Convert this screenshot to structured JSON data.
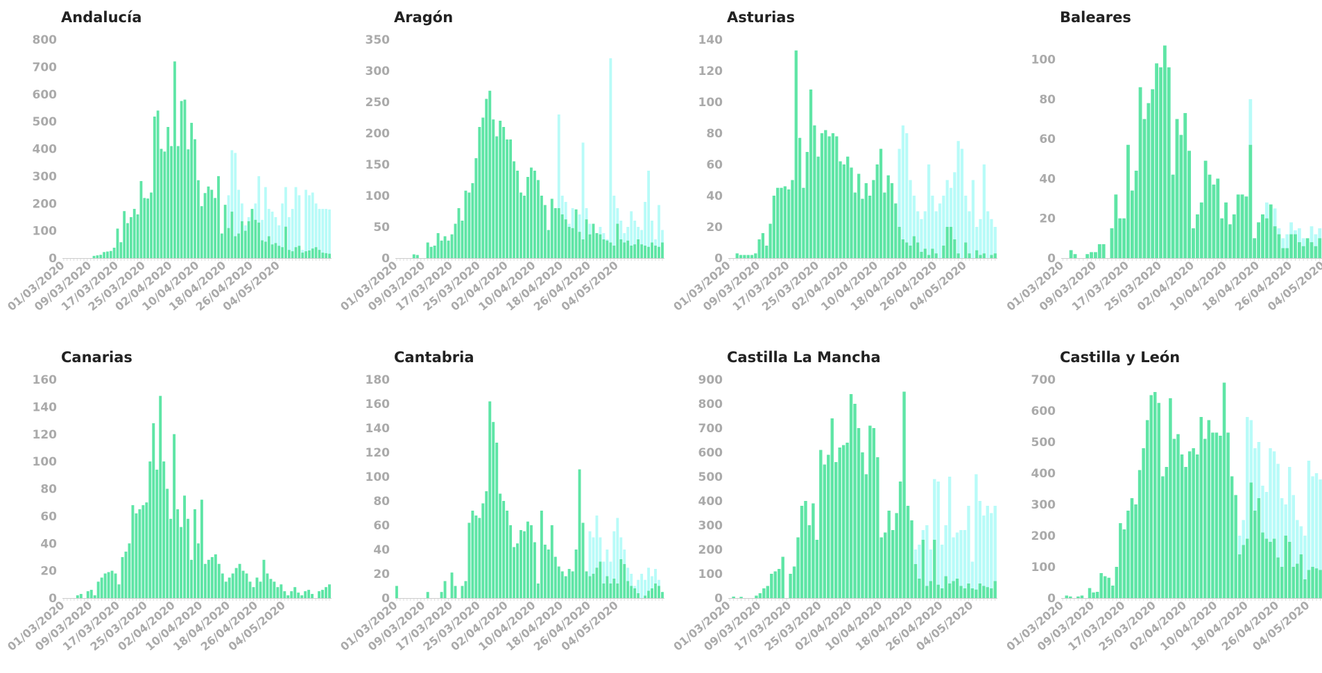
{
  "colors": {
    "primary": "#5fe5a5",
    "secondary": "#b8fbf8",
    "tick_text": "#aaaaaa",
    "title": "#222222",
    "axis": "#cccccc"
  },
  "x_tick_labels": [
    "01/03/2020",
    "09/03/2020",
    "17/03/2020",
    "25/03/2020",
    "02/04/2020",
    "10/04/2020",
    "18/04/2020",
    "26/04/2020",
    "04/05/2020"
  ],
  "chart_data": [
    {
      "type": "bar",
      "title": "Andalucía",
      "ylim": [
        0,
        800
      ],
      "yticks": [
        0,
        100,
        200,
        300,
        400,
        500,
        600,
        700,
        800
      ],
      "start_date": "01/03/2020",
      "values": [
        0,
        0,
        0,
        0,
        0,
        0,
        0,
        0,
        0,
        8,
        10,
        12,
        22,
        24,
        26,
        38,
        108,
        58,
        172,
        128,
        150,
        180,
        160,
        282,
        220,
        218,
        240,
        518,
        540,
        400,
        390,
        480,
        410,
        720,
        410,
        575,
        580,
        398,
        495,
        435,
        285,
        190,
        238,
        262,
        250,
        220,
        300,
        90,
        195,
        110,
        170,
        80,
        90,
        135,
        100,
        135,
        180,
        140,
        130,
        65,
        60,
        80,
        50,
        55,
        45,
        40,
        115,
        30,
        25,
        40,
        45,
        20,
        25,
        28,
        35,
        40,
        30,
        20,
        18,
        16
      ],
      "overlay": [
        0,
        0,
        0,
        0,
        0,
        0,
        0,
        0,
        0,
        8,
        10,
        12,
        22,
        24,
        26,
        38,
        108,
        58,
        172,
        128,
        150,
        180,
        160,
        282,
        220,
        218,
        240,
        518,
        540,
        400,
        390,
        480,
        410,
        720,
        410,
        575,
        580,
        398,
        495,
        435,
        285,
        190,
        238,
        262,
        250,
        220,
        300,
        90,
        195,
        230,
        395,
        385,
        250,
        200,
        120,
        150,
        180,
        200,
        300,
        140,
        260,
        180,
        170,
        150,
        120,
        200,
        260,
        150,
        180,
        260,
        230,
        30,
        250,
        230,
        240,
        200,
        180,
        180,
        180,
        178
      ]
    },
    {
      "type": "bar",
      "title": "Aragón",
      "ylim": [
        0,
        350
      ],
      "yticks": [
        0,
        50,
        100,
        150,
        200,
        250,
        300,
        350
      ],
      "start_date": "01/03/2020",
      "values": [
        0,
        0,
        0,
        0,
        0,
        6,
        5,
        0,
        0,
        25,
        18,
        20,
        40,
        28,
        35,
        28,
        38,
        55,
        80,
        60,
        108,
        105,
        120,
        160,
        210,
        225,
        255,
        268,
        222,
        195,
        220,
        210,
        190,
        190,
        155,
        140,
        105,
        100,
        130,
        145,
        140,
        125,
        100,
        85,
        45,
        95,
        80,
        80,
        70,
        62,
        50,
        48,
        78,
        42,
        30,
        62,
        38,
        55,
        40,
        38,
        30,
        28,
        25,
        20,
        55,
        30,
        25,
        28,
        20,
        22,
        30,
        22,
        20,
        18,
        25,
        20,
        18,
        25
      ],
      "overlay": [
        0,
        0,
        0,
        0,
        0,
        6,
        5,
        0,
        0,
        25,
        18,
        20,
        40,
        28,
        35,
        28,
        38,
        55,
        80,
        60,
        108,
        105,
        120,
        160,
        210,
        225,
        255,
        268,
        222,
        195,
        220,
        210,
        190,
        190,
        155,
        140,
        105,
        100,
        130,
        145,
        140,
        125,
        100,
        85,
        45,
        95,
        80,
        230,
        100,
        90,
        55,
        80,
        60,
        70,
        185,
        80,
        55,
        40,
        30,
        50,
        40,
        30,
        320,
        100,
        80,
        60,
        40,
        50,
        75,
        60,
        50,
        45,
        90,
        140,
        60,
        30,
        85,
        45
      ]
    },
    {
      "type": "bar",
      "title": "Asturias",
      "ylim": [
        0,
        140
      ],
      "yticks": [
        0,
        20,
        40,
        60,
        80,
        100,
        120,
        140
      ],
      "start_date": "01/03/2020",
      "values": [
        0,
        0,
        3,
        2,
        2,
        2,
        2,
        3,
        12,
        16,
        8,
        22,
        40,
        45,
        45,
        46,
        44,
        50,
        133,
        77,
        45,
        68,
        108,
        85,
        65,
        80,
        82,
        78,
        80,
        78,
        62,
        60,
        65,
        58,
        42,
        54,
        38,
        48,
        40,
        50,
        60,
        70,
        42,
        53,
        48,
        35,
        20,
        12,
        10,
        8,
        14,
        10,
        4,
        6,
        2,
        6,
        3,
        0,
        8,
        20,
        20,
        12,
        3,
        0,
        10,
        3,
        0,
        5,
        2,
        3,
        0,
        2,
        3
      ],
      "overlay": [
        0,
        0,
        3,
        2,
        2,
        2,
        2,
        3,
        12,
        16,
        8,
        22,
        40,
        45,
        45,
        46,
        44,
        50,
        133,
        77,
        45,
        68,
        108,
        85,
        65,
        80,
        82,
        78,
        80,
        78,
        62,
        60,
        65,
        58,
        42,
        54,
        38,
        48,
        40,
        50,
        60,
        70,
        42,
        53,
        48,
        35,
        70,
        85,
        80,
        50,
        40,
        30,
        25,
        30,
        60,
        40,
        30,
        35,
        40,
        50,
        45,
        55,
        75,
        70,
        40,
        30,
        50,
        20,
        25,
        60,
        30,
        25,
        20
      ]
    },
    {
      "type": "bar",
      "title": "Baleares",
      "ylim": [
        0,
        110
      ],
      "yticks": [
        0,
        20,
        40,
        60,
        80,
        100
      ],
      "start_date": "01/03/2020",
      "values": [
        0,
        0,
        4,
        2,
        0,
        0,
        2,
        3,
        3,
        7,
        7,
        0,
        15,
        32,
        20,
        20,
        57,
        34,
        44,
        86,
        70,
        78,
        85,
        98,
        96,
        107,
        96,
        42,
        70,
        62,
        73,
        54,
        15,
        22,
        28,
        49,
        42,
        37,
        40,
        20,
        28,
        17,
        22,
        32,
        32,
        31,
        57,
        10,
        18,
        22,
        20,
        27,
        16,
        12,
        5,
        5,
        12,
        12,
        8,
        6,
        10,
        8,
        6,
        10,
        8,
        6
      ],
      "overlay": [
        0,
        0,
        4,
        2,
        0,
        0,
        2,
        3,
        3,
        7,
        7,
        0,
        15,
        32,
        20,
        20,
        57,
        34,
        44,
        86,
        70,
        78,
        85,
        98,
        96,
        107,
        96,
        42,
        70,
        62,
        73,
        54,
        15,
        22,
        28,
        49,
        42,
        37,
        40,
        20,
        28,
        17,
        22,
        32,
        32,
        31,
        80,
        10,
        18,
        22,
        28,
        27,
        25,
        15,
        10,
        12,
        18,
        14,
        15,
        10,
        8,
        16,
        12,
        15,
        10,
        8
      ]
    },
    {
      "type": "bar",
      "title": "Canarias",
      "ylim": [
        0,
        160
      ],
      "yticks": [
        0,
        20,
        40,
        60,
        80,
        100,
        120,
        140,
        160
      ],
      "start_date": "01/03/2020",
      "values": [
        0,
        0,
        0,
        0,
        2,
        3,
        0,
        5,
        6,
        2,
        12,
        15,
        18,
        19,
        20,
        18,
        10,
        30,
        34,
        40,
        68,
        62,
        65,
        68,
        70,
        100,
        128,
        94,
        148,
        100,
        80,
        58,
        120,
        65,
        52,
        75,
        58,
        28,
        65,
        40,
        72,
        25,
        28,
        30,
        32,
        25,
        18,
        12,
        15,
        18,
        22,
        25,
        20,
        18,
        12,
        8,
        15,
        12,
        28,
        18,
        14,
        12,
        8,
        10,
        5,
        2,
        5,
        8,
        4,
        2,
        5,
        6,
        3,
        0,
        5,
        6,
        8,
        10
      ],
      "overlay": [
        0,
        0,
        0,
        0,
        2,
        3,
        0,
        5,
        6,
        2,
        12,
        15,
        18,
        19,
        20,
        18,
        10,
        30,
        34,
        40,
        68,
        62,
        65,
        68,
        70,
        100,
        128,
        94,
        148,
        100,
        80,
        58,
        120,
        65,
        52,
        75,
        58,
        28,
        65,
        40,
        72,
        25,
        28,
        30,
        32,
        25,
        18,
        12,
        15,
        18,
        22,
        25,
        20,
        18,
        12,
        8,
        15,
        12,
        28,
        18,
        14,
        12,
        8,
        10,
        5,
        2,
        5,
        8,
        4,
        2,
        5,
        6,
        3,
        0,
        5,
        6,
        8,
        10
      ]
    },
    {
      "type": "bar",
      "title": "Cantabria",
      "ylim": [
        0,
        180
      ],
      "yticks": [
        0,
        20,
        40,
        60,
        80,
        100,
        120,
        140,
        160,
        180
      ],
      "start_date": "01/03/2020",
      "values": [
        10,
        0,
        0,
        0,
        0,
        0,
        0,
        0,
        0,
        5,
        0,
        0,
        0,
        5,
        14,
        0,
        21,
        10,
        0,
        10,
        14,
        62,
        72,
        68,
        66,
        78,
        88,
        162,
        145,
        128,
        86,
        80,
        72,
        60,
        42,
        45,
        56,
        55,
        63,
        60,
        46,
        12,
        72,
        44,
        40,
        60,
        34,
        26,
        22,
        18,
        24,
        22,
        40,
        106,
        62,
        22,
        18,
        20,
        25,
        30,
        12,
        18,
        12,
        16,
        12,
        32,
        28,
        14,
        10,
        8,
        4,
        0,
        2,
        6,
        8,
        12,
        10,
        5
      ],
      "overlay": [
        10,
        0,
        0,
        0,
        0,
        0,
        0,
        0,
        0,
        5,
        0,
        0,
        0,
        5,
        14,
        0,
        21,
        10,
        0,
        10,
        14,
        62,
        72,
        68,
        66,
        78,
        88,
        162,
        145,
        128,
        86,
        80,
        72,
        60,
        42,
        45,
        56,
        55,
        63,
        60,
        46,
        12,
        72,
        44,
        40,
        60,
        34,
        26,
        22,
        18,
        24,
        22,
        40,
        106,
        62,
        22,
        55,
        50,
        68,
        50,
        30,
        40,
        30,
        55,
        66,
        50,
        40,
        25,
        20,
        10,
        15,
        20,
        15,
        25,
        18,
        24,
        15,
        5
      ]
    },
    {
      "type": "bar",
      "title": "Castilla La Mancha",
      "ylim": [
        0,
        900
      ],
      "yticks": [
        0,
        100,
        200,
        300,
        400,
        500,
        600,
        700,
        800,
        900
      ],
      "start_date": "01/03/2020",
      "values": [
        0,
        6,
        0,
        5,
        0,
        0,
        0,
        10,
        20,
        40,
        50,
        100,
        110,
        120,
        170,
        0,
        100,
        130,
        250,
        380,
        400,
        300,
        390,
        240,
        610,
        550,
        590,
        740,
        560,
        620,
        630,
        640,
        840,
        800,
        700,
        600,
        510,
        710,
        700,
        580,
        250,
        270,
        360,
        280,
        350,
        480,
        850,
        380,
        320,
        140,
        80,
        240,
        50,
        70,
        240,
        55,
        40,
        90,
        60,
        70,
        80,
        50,
        40,
        60,
        40,
        35,
        60,
        50,
        45,
        40,
        70
      ],
      "overlay": [
        0,
        6,
        0,
        5,
        0,
        0,
        0,
        10,
        20,
        40,
        50,
        100,
        110,
        120,
        170,
        0,
        100,
        130,
        250,
        380,
        400,
        300,
        390,
        240,
        610,
        550,
        590,
        740,
        560,
        620,
        630,
        640,
        840,
        800,
        700,
        600,
        510,
        710,
        700,
        580,
        250,
        270,
        360,
        280,
        350,
        480,
        850,
        380,
        320,
        200,
        220,
        280,
        300,
        200,
        490,
        480,
        220,
        300,
        500,
        250,
        270,
        280,
        280,
        380,
        150,
        510,
        400,
        340,
        380,
        350,
        380
      ]
    },
    {
      "type": "bar",
      "title": "Castilla y León",
      "ylim": [
        0,
        700
      ],
      "yticks": [
        0,
        100,
        200,
        300,
        400,
        500,
        600,
        700
      ],
      "start_date": "01/03/2020",
      "values": [
        0,
        8,
        5,
        0,
        5,
        8,
        0,
        32,
        18,
        20,
        80,
        70,
        65,
        40,
        100,
        240,
        220,
        280,
        320,
        300,
        410,
        480,
        570,
        650,
        660,
        625,
        390,
        420,
        640,
        510,
        525,
        460,
        420,
        470,
        480,
        460,
        580,
        510,
        570,
        530,
        530,
        520,
        690,
        530,
        390,
        330,
        140,
        170,
        190,
        370,
        280,
        320,
        210,
        190,
        180,
        190,
        130,
        100,
        200,
        180,
        100,
        110,
        140,
        60,
        90,
        100,
        95,
        90,
        80,
        60
      ],
      "overlay": [
        0,
        8,
        5,
        0,
        5,
        8,
        0,
        32,
        18,
        20,
        80,
        70,
        65,
        40,
        100,
        240,
        220,
        280,
        320,
        300,
        410,
        480,
        570,
        650,
        660,
        625,
        390,
        420,
        640,
        510,
        525,
        460,
        420,
        470,
        480,
        460,
        580,
        510,
        570,
        530,
        530,
        520,
        690,
        530,
        390,
        330,
        200,
        250,
        580,
        570,
        480,
        500,
        360,
        340,
        480,
        470,
        430,
        320,
        300,
        420,
        330,
        250,
        230,
        200,
        440,
        390,
        400,
        380,
        350,
        300
      ]
    }
  ]
}
